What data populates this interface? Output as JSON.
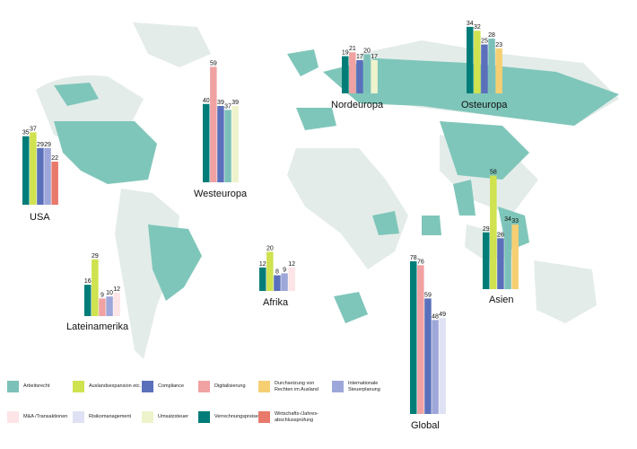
{
  "colors": {
    "land_highlight": "#7fc6ba",
    "land_muted": "#e3ece9"
  },
  "legend": [
    {
      "key": "arbeitsrecht",
      "label": "Arbeitsrecht",
      "color": "#7cc1b9"
    },
    {
      "key": "ausland",
      "label": "Auslandsexpansion etc.",
      "color": "#cfe24f"
    },
    {
      "key": "compliance",
      "label": "Compliance",
      "color": "#5a70bb"
    },
    {
      "key": "digital",
      "label": "Digitalisierung",
      "color": "#f0a2a2"
    },
    {
      "key": "durchsetzung",
      "label": "Durchsetzung von Rechten im Ausland",
      "color": "#f6cf73"
    },
    {
      "key": "intsteuer",
      "label": "Internationale Steuerplanung",
      "color": "#9ea7d9"
    },
    {
      "key": "mna",
      "label": "M&A /Transaktionen",
      "color": "#fde4e6"
    },
    {
      "key": "risiko",
      "label": "Risikomanagement",
      "color": "#dfe1f4"
    },
    {
      "key": "umsatz",
      "label": "Umsatzsteuer",
      "color": "#eef3cc"
    },
    {
      "key": "verrechnung",
      "label": "Verrechnungspreise",
      "color": "#007d78"
    },
    {
      "key": "wirtschaft",
      "label": "Wirtschafts-/Jahres-abschlussprüfung",
      "color": "#e8796b"
    }
  ],
  "chart_data": [
    {
      "type": "bar",
      "region": "USA",
      "categories": [
        "Verrechnungspreise",
        "Auslandsexpansion etc.",
        "Compliance",
        "Internationale Steuerplanung",
        "Wirtschafts-/Jahres-abschlussprüfung"
      ],
      "values": [
        35,
        37,
        29,
        29,
        22
      ]
    },
    {
      "type": "bar",
      "region": "Westeuropa",
      "categories": [
        "Verrechnungspreise",
        "Digitalisierung",
        "Compliance",
        "Arbeitsrecht",
        "Umsatzsteuer"
      ],
      "values": [
        40,
        59,
        39,
        37,
        39
      ]
    },
    {
      "type": "bar",
      "region": "Nordeuropa",
      "categories": [
        "Verrechnungspreise",
        "Digitalisierung",
        "Compliance",
        "Arbeitsrecht",
        "Umsatzsteuer"
      ],
      "values": [
        19,
        21,
        17,
        20,
        17
      ]
    },
    {
      "type": "bar",
      "region": "Osteuropa",
      "categories": [
        "Verrechnungspreise",
        "Auslandsexpansion etc.",
        "Compliance",
        "Arbeitsrecht",
        "Durchsetzung von Rechten im Ausland"
      ],
      "values": [
        34,
        32,
        25,
        28,
        23
      ]
    },
    {
      "type": "bar",
      "region": "Asien",
      "categories": [
        "Verrechnungspreise",
        "Auslandsexpansion etc.",
        "Compliance",
        "Arbeitsrecht",
        "Durchsetzung von Rechten im Ausland"
      ],
      "values": [
        29,
        58,
        26,
        34,
        33
      ]
    },
    {
      "type": "bar",
      "region": "Lateinamerika",
      "categories": [
        "Verrechnungspreise",
        "Auslandsexpansion etc.",
        "Digitalisierung",
        "Internationale Steuerplanung",
        "M&A /Transaktionen"
      ],
      "values": [
        16,
        29,
        9,
        10,
        12
      ]
    },
    {
      "type": "bar",
      "region": "Afrika",
      "categories": [
        "Verrechnungspreise",
        "Auslandsexpansion etc.",
        "Compliance",
        "Internationale Steuerplanung",
        "M&A /Transaktionen"
      ],
      "values": [
        12,
        20,
        8,
        9,
        12
      ]
    },
    {
      "type": "bar",
      "region": "Global",
      "categories": [
        "Verrechnungspreise",
        "Digitalisierung",
        "Compliance",
        "Internationale Steuerplanung",
        "Risikomanagement"
      ],
      "values": [
        78,
        76,
        59,
        48,
        49
      ]
    }
  ]
}
